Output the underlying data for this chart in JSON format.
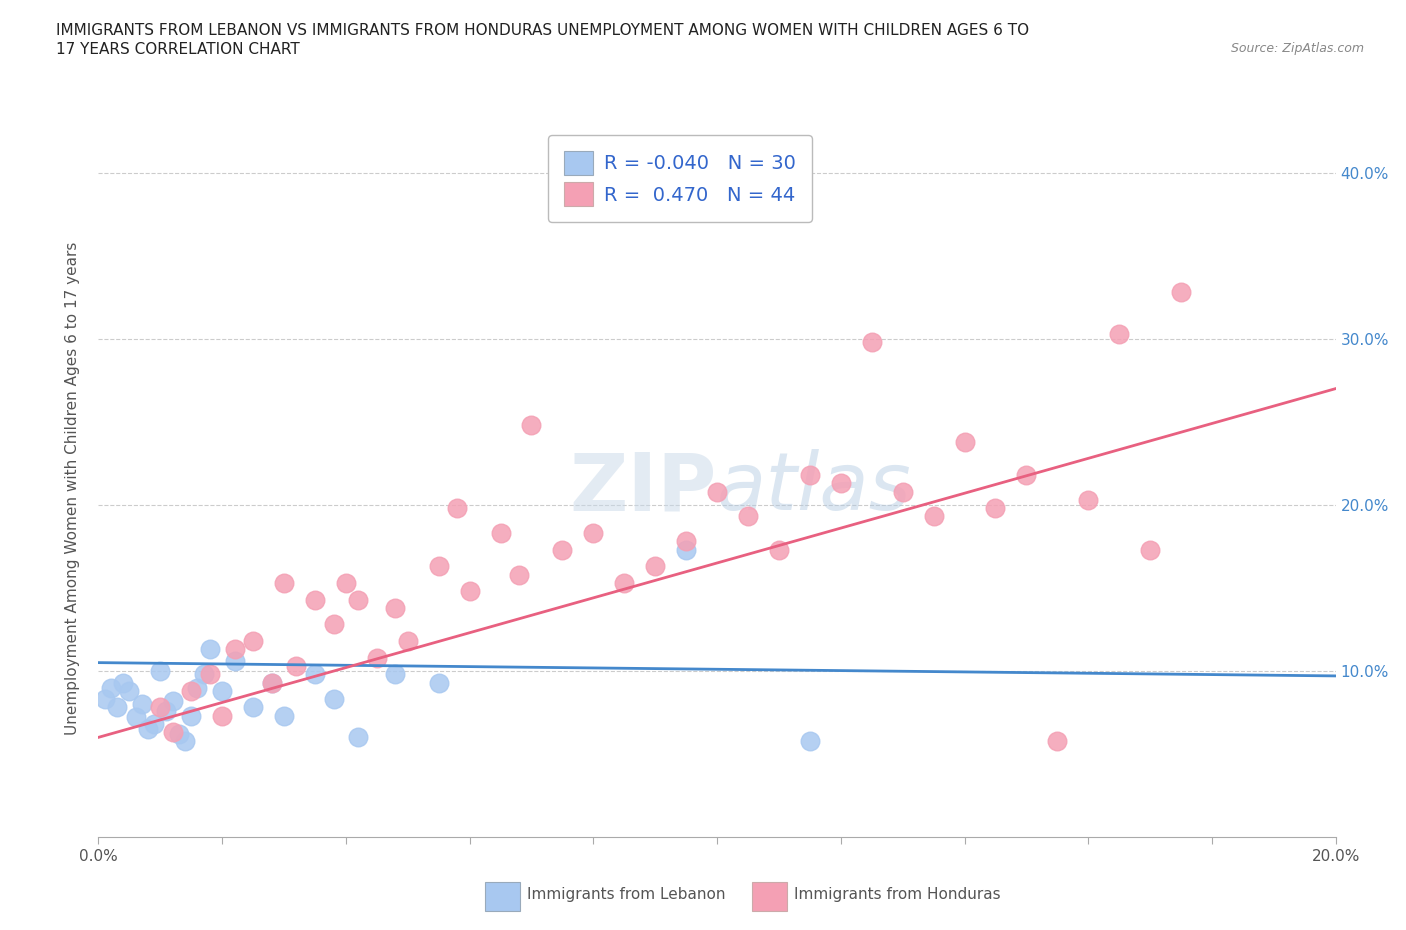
{
  "title_line1": "IMMIGRANTS FROM LEBANON VS IMMIGRANTS FROM HONDURAS UNEMPLOYMENT AMONG WOMEN WITH CHILDREN AGES 6 TO",
  "title_line2": "17 YEARS CORRELATION CHART",
  "source_text": "Source: ZipAtlas.com",
  "ylabel": "Unemployment Among Women with Children Ages 6 to 17 years",
  "xlim": [
    0.0,
    0.2
  ],
  "ylim": [
    0.0,
    0.42
  ],
  "xticks": [
    0.0,
    0.02,
    0.04,
    0.06,
    0.08,
    0.1,
    0.12,
    0.14,
    0.16,
    0.18,
    0.2
  ],
  "xticklabels": [
    "0.0%",
    "",
    "",
    "",
    "",
    "",
    "",
    "",
    "",
    "",
    "20.0%"
  ],
  "ytick_positions": [
    0.0,
    0.1,
    0.2,
    0.3,
    0.4
  ],
  "ytick_labels": [
    "",
    "10.0%",
    "20.0%",
    "30.0%",
    "40.0%"
  ],
  "grid_color": "#cccccc",
  "background_color": "#ffffff",
  "watermark_text": "ZIPatlas",
  "lebanon_color": "#a8c8f0",
  "honduras_color": "#f4a0b4",
  "lebanon_line_color": "#4488cc",
  "honduras_line_color": "#e86080",
  "legend_R_lebanon": "-0.040",
  "legend_N_lebanon": "30",
  "legend_R_honduras": "0.470",
  "legend_N_honduras": "44",
  "lebanon_scatter_x": [
    0.001,
    0.002,
    0.003,
    0.004,
    0.005,
    0.006,
    0.007,
    0.008,
    0.009,
    0.01,
    0.011,
    0.012,
    0.013,
    0.014,
    0.015,
    0.016,
    0.017,
    0.018,
    0.02,
    0.022,
    0.025,
    0.028,
    0.03,
    0.035,
    0.038,
    0.042,
    0.048,
    0.055,
    0.095,
    0.115
  ],
  "lebanon_scatter_y": [
    0.083,
    0.09,
    0.078,
    0.093,
    0.088,
    0.072,
    0.08,
    0.065,
    0.068,
    0.1,
    0.076,
    0.082,
    0.062,
    0.058,
    0.073,
    0.09,
    0.098,
    0.113,
    0.088,
    0.106,
    0.078,
    0.093,
    0.073,
    0.098,
    0.083,
    0.06,
    0.098,
    0.093,
    0.173,
    0.058
  ],
  "honduras_scatter_x": [
    0.01,
    0.012,
    0.015,
    0.018,
    0.02,
    0.022,
    0.025,
    0.028,
    0.03,
    0.032,
    0.035,
    0.038,
    0.04,
    0.042,
    0.045,
    0.048,
    0.05,
    0.055,
    0.058,
    0.06,
    0.065,
    0.068,
    0.07,
    0.075,
    0.08,
    0.085,
    0.09,
    0.095,
    0.1,
    0.105,
    0.11,
    0.115,
    0.12,
    0.125,
    0.13,
    0.135,
    0.14,
    0.145,
    0.15,
    0.155,
    0.16,
    0.165,
    0.17,
    0.175
  ],
  "honduras_scatter_y": [
    0.078,
    0.063,
    0.088,
    0.098,
    0.073,
    0.113,
    0.118,
    0.093,
    0.153,
    0.103,
    0.143,
    0.128,
    0.153,
    0.143,
    0.108,
    0.138,
    0.118,
    0.163,
    0.198,
    0.148,
    0.183,
    0.158,
    0.248,
    0.173,
    0.183,
    0.153,
    0.163,
    0.178,
    0.208,
    0.193,
    0.173,
    0.218,
    0.213,
    0.298,
    0.208,
    0.193,
    0.238,
    0.198,
    0.218,
    0.058,
    0.203,
    0.303,
    0.173,
    0.328
  ],
  "lebanon_trend_x": [
    0.0,
    0.2
  ],
  "lebanon_trend_y": [
    0.105,
    0.097
  ],
  "honduras_trend_x": [
    0.0,
    0.2
  ],
  "honduras_trend_y": [
    0.06,
    0.27
  ]
}
